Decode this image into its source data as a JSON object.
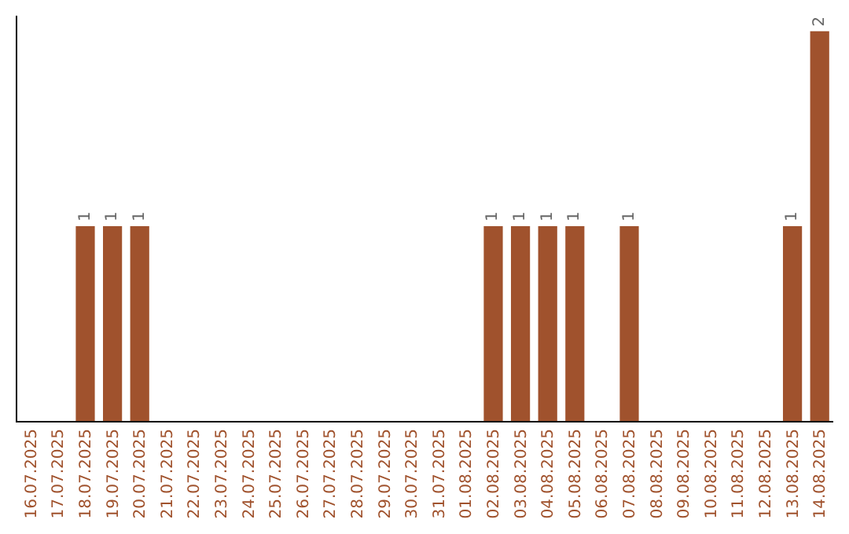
{
  "chart_data": {
    "type": "bar",
    "categories": [
      "16.07.2025",
      "17.07.2025",
      "18.07.2025",
      "19.07.2025",
      "20.07.2025",
      "21.07.2025",
      "22.07.2025",
      "23.07.2025",
      "24.07.2025",
      "25.07.2025",
      "26.07.2025",
      "27.07.2025",
      "28.07.2025",
      "29.07.2025",
      "30.07.2025",
      "31.07.2025",
      "01.08.2025",
      "02.08.2025",
      "03.08.2025",
      "04.08.2025",
      "05.08.2025",
      "06.08.2025",
      "07.08.2025",
      "08.08.2025",
      "09.08.2025",
      "10.08.2025",
      "11.08.2025",
      "12.08.2025",
      "13.08.2025",
      "14.08.2025"
    ],
    "values": [
      0,
      0,
      1,
      1,
      1,
      0,
      0,
      0,
      0,
      0,
      0,
      0,
      0,
      0,
      0,
      0,
      0,
      1,
      1,
      1,
      1,
      0,
      1,
      0,
      0,
      0,
      0,
      0,
      1,
      2
    ],
    "value_labels": [
      null,
      null,
      "1",
      "1",
      "1",
      null,
      null,
      null,
      null,
      null,
      null,
      null,
      null,
      null,
      null,
      null,
      null,
      "1",
      "1",
      "1",
      "1",
      null,
      "1",
      null,
      null,
      null,
      null,
      null,
      "1",
      "2"
    ],
    "color": "#a0522d",
    "ylim": [
      0,
      2.08
    ]
  }
}
